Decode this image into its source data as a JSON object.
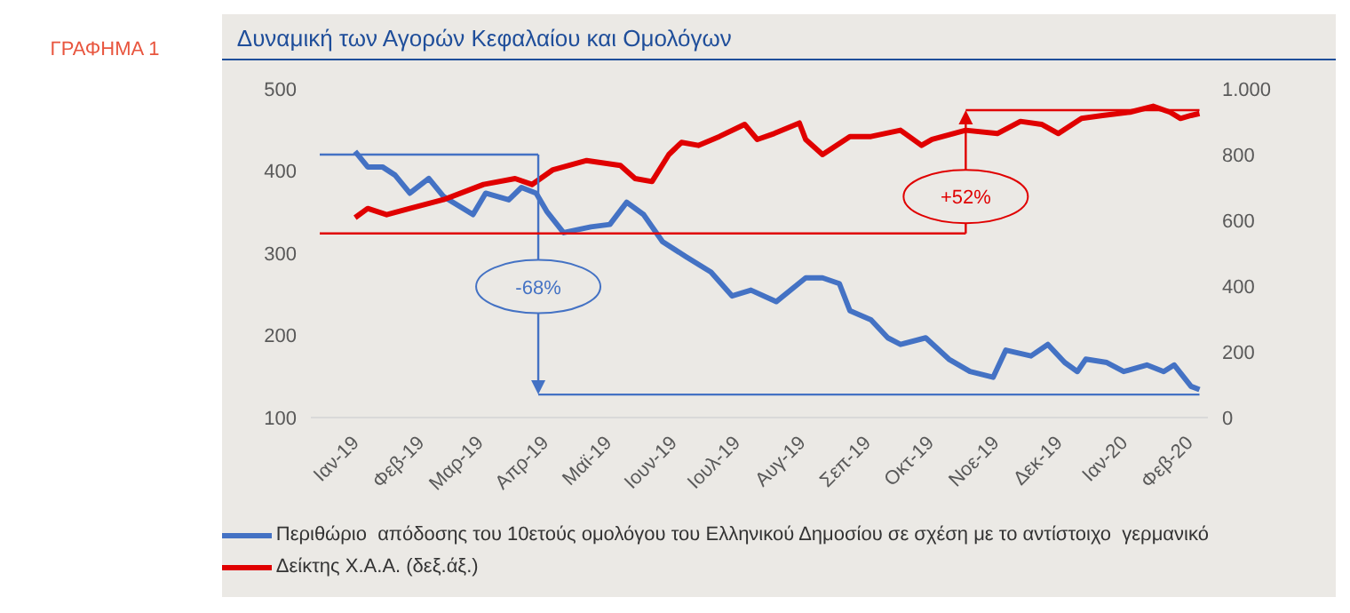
{
  "chart_data": {
    "type": "line",
    "title": "Δυναμική των Αγορών Κεφαλαίου και Ομολόγων",
    "xlim": [
      "2018-12-11",
      "2020-02-10"
    ],
    "xticks": [
      {
        "value": "2019-01-01",
        "label": "Ιαν-19"
      },
      {
        "value": "2019-02-01",
        "label": "Φεβ-19"
      },
      {
        "value": "2019-03-01",
        "label": "Μαρ-19"
      },
      {
        "value": "2019-04-01",
        "label": "Απρ-19"
      },
      {
        "value": "2019-05-01",
        "label": "Μαϊ-19"
      },
      {
        "value": "2019-06-01",
        "label": "Ιουν-19"
      },
      {
        "value": "2019-07-01",
        "label": "Ιουλ-19"
      },
      {
        "value": "2019-08-01",
        "label": "Αυγ-19"
      },
      {
        "value": "2019-09-01",
        "label": "Σεπ-19"
      },
      {
        "value": "2019-10-01",
        "label": "Οκτ-19"
      },
      {
        "value": "2019-11-01",
        "label": "Νοε-19"
      },
      {
        "value": "2019-12-01",
        "label": "Δεκ-19"
      },
      {
        "value": "2020-01-01",
        "label": "Ιαν-20"
      },
      {
        "value": "2020-02-01",
        "label": "Φεβ-20"
      }
    ],
    "ylim": [
      100,
      500
    ],
    "yticks": [
      100,
      200,
      300,
      400,
      500
    ],
    "y2lim": [
      0,
      1000
    ],
    "y2ticks": [
      0,
      200,
      400,
      600,
      800,
      {
        "value": 1000,
        "label": "1.000"
      }
    ],
    "grid": false,
    "legend": "bottom",
    "annotations": [
      "ΓΡΑΦΗΜΑ 1",
      {
        "text": "-68%",
        "x": "2019-03-29",
        "y": 128
      },
      {
        "text": "+52%",
        "x": "2019-10-18",
        "y": 474
      }
    ],
    "ref_lines": [
      {
        "axis": "y",
        "value": 420,
        "color": "#4472c4"
      },
      {
        "axis": "y",
        "value": 128,
        "color": "#4472c4"
      },
      {
        "axis": "y2",
        "value": 560,
        "color": "#e00000"
      },
      {
        "axis": "y2",
        "value": 935,
        "color": "#e00000"
      }
    ],
    "series": [
      {
        "name": "Περιθώριο  απόδοσης του 10ετούς ομολόγου του Ελληνικού Δημοσίου σε σχέση με το αντίστοιχο  γερμανικό",
        "color": "#4472c4",
        "x": [
          "2019-01-01",
          "2019-01-07",
          "2019-01-14",
          "2019-01-20",
          "2019-01-27",
          "2019-02-05",
          "2019-02-12",
          "2019-02-26",
          "2019-03-04",
          "2019-03-15",
          "2019-03-21",
          "2019-03-28",
          "2019-04-02",
          "2019-04-10",
          "2019-04-23",
          "2019-05-02",
          "2019-05-10",
          "2019-05-18",
          "2019-05-27",
          "2019-06-07",
          "2019-06-19",
          "2019-06-29",
          "2019-07-08",
          "2019-07-20",
          "2019-08-03",
          "2019-08-11",
          "2019-08-19",
          "2019-08-24",
          "2019-09-03",
          "2019-09-11",
          "2019-09-17",
          "2019-09-29",
          "2019-10-10",
          "2019-10-20",
          "2019-10-31",
          "2019-11-06",
          "2019-11-18",
          "2019-11-26",
          "2019-12-04",
          "2019-12-10",
          "2019-12-14",
          "2019-12-24",
          "2020-01-01",
          "2020-01-12",
          "2020-01-20",
          "2020-01-25",
          "2020-02-02",
          "2020-02-06"
        ],
        "values": [
          424,
          405,
          405,
          395,
          373,
          391,
          369,
          347,
          373,
          365,
          380,
          373,
          351,
          325,
          332,
          335,
          362,
          347,
          314,
          296,
          277,
          248,
          255,
          241,
          270,
          270,
          263,
          230,
          219,
          197,
          189,
          197,
          171,
          156,
          149,
          182,
          175,
          189,
          167,
          156,
          171,
          167,
          156,
          164,
          156,
          164,
          138,
          134
        ]
      },
      {
        "name": "Δείκτης Χ.Α.Α. (δεξ.άξ.)",
        "color": "#e00000",
        "axis": "y2",
        "x": [
          "2019-01-01",
          "2019-01-07",
          "2019-01-16",
          "2019-01-27",
          "2019-02-12",
          "2019-03-03",
          "2019-03-18",
          "2019-03-26",
          "2019-04-05",
          "2019-04-21",
          "2019-05-07",
          "2019-05-14",
          "2019-05-22",
          "2019-05-30",
          "2019-06-05",
          "2019-06-13",
          "2019-06-23",
          "2019-07-05",
          "2019-07-11",
          "2019-07-19",
          "2019-07-31",
          "2019-08-03",
          "2019-08-11",
          "2019-08-24",
          "2019-09-03",
          "2019-09-17",
          "2019-09-27",
          "2019-10-02",
          "2019-10-18",
          "2019-11-02",
          "2019-11-13",
          "2019-11-23",
          "2019-12-01",
          "2019-12-12",
          "2019-12-22",
          "2020-01-04",
          "2020-01-15",
          "2020-01-23",
          "2020-01-28",
          "2020-02-02",
          "2020-02-06"
        ],
        "values": [
          608,
          636,
          617,
          636,
          663,
          709,
          727,
          709,
          754,
          782,
          767,
          727,
          718,
          800,
          837,
          828,
          855,
          892,
          846,
          864,
          896,
          846,
          800,
          855,
          855,
          874,
          828,
          846,
          874,
          864,
          901,
          892,
          864,
          910,
          919,
          929,
          947,
          929,
          910,
          919,
          925
        ]
      }
    ]
  }
}
